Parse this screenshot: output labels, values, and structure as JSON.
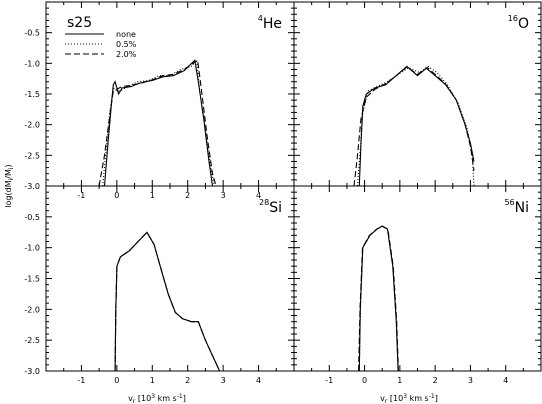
{
  "figure": {
    "model_label": "s25",
    "ylabel": "log(dM",
    "ylabel_sub1": "i",
    "ylabel_mid": "/M",
    "ylabel_sub2": "i",
    "ylabel_end": ")",
    "xlabel_main": "v",
    "xlabel_sub": "r",
    "xlabel_rest": " [10",
    "xlabel_exp": "3",
    "xlabel_unit": " km s",
    "xlabel_exp2": "-1",
    "xlabel_close": "]"
  },
  "legend": {
    "position": "top-left of upper-left panel",
    "items": [
      {
        "label": "none",
        "dash": "solid"
      },
      {
        "label": "0.5%",
        "dash": "dotted"
      },
      {
        "label": "2.0%",
        "dash": "dashed"
      }
    ]
  },
  "chart_data": [
    {
      "type": "line",
      "panel": "4He",
      "title_sup": "4",
      "title_main": "He",
      "xlim": [
        -2,
        5
      ],
      "ylim": [
        -3.0,
        0.0
      ],
      "xticks": [
        "-1",
        "0",
        "1",
        "2",
        "3",
        "4"
      ],
      "yticks": [
        "-0.5",
        "-1.0",
        "-1.5",
        "-2.0",
        "-2.5",
        "-3.0"
      ],
      "series": [
        {
          "name": "none",
          "dash": "solid",
          "points": [
            [
              -0.35,
              -3.0
            ],
            [
              -0.25,
              -2.3
            ],
            [
              -0.15,
              -1.65
            ],
            [
              -0.1,
              -1.35
            ],
            [
              -0.05,
              -1.3
            ],
            [
              0.05,
              -1.5
            ],
            [
              0.15,
              -1.4
            ],
            [
              0.4,
              -1.38
            ],
            [
              0.6,
              -1.33
            ],
            [
              0.8,
              -1.3
            ],
            [
              1.0,
              -1.28
            ],
            [
              1.3,
              -1.22
            ],
            [
              1.6,
              -1.2
            ],
            [
              1.9,
              -1.12
            ],
            [
              2.2,
              -0.95
            ],
            [
              2.3,
              -1.3
            ],
            [
              2.45,
              -1.9
            ],
            [
              2.6,
              -2.6
            ],
            [
              2.7,
              -3.0
            ]
          ]
        },
        {
          "name": "0.5%",
          "dash": "dotted",
          "points": [
            [
              -0.4,
              -3.0
            ],
            [
              -0.3,
              -2.4
            ],
            [
              -0.2,
              -1.8
            ],
            [
              -0.1,
              -1.4
            ],
            [
              0.0,
              -1.45
            ],
            [
              0.1,
              -1.45
            ],
            [
              0.3,
              -1.38
            ],
            [
              0.6,
              -1.3
            ],
            [
              0.9,
              -1.28
            ],
            [
              1.2,
              -1.2
            ],
            [
              1.5,
              -1.2
            ],
            [
              1.8,
              -1.1
            ],
            [
              2.1,
              -1.05
            ],
            [
              2.25,
              -0.95
            ],
            [
              2.35,
              -1.5
            ],
            [
              2.5,
              -2.1
            ],
            [
              2.65,
              -2.7
            ],
            [
              2.75,
              -3.0
            ]
          ]
        },
        {
          "name": "2.0%",
          "dash": "dashed",
          "points": [
            [
              -0.5,
              -3.0
            ],
            [
              -0.35,
              -2.5
            ],
            [
              -0.2,
              -1.85
            ],
            [
              -0.1,
              -1.45
            ],
            [
              0.0,
              -1.42
            ],
            [
              0.15,
              -1.38
            ],
            [
              0.4,
              -1.36
            ],
            [
              0.7,
              -1.32
            ],
            [
              1.0,
              -1.27
            ],
            [
              1.3,
              -1.2
            ],
            [
              1.6,
              -1.18
            ],
            [
              1.9,
              -1.1
            ],
            [
              2.15,
              -1.0
            ],
            [
              2.28,
              -0.95
            ],
            [
              2.38,
              -1.4
            ],
            [
              2.55,
              -2.2
            ],
            [
              2.7,
              -2.8
            ],
            [
              2.8,
              -3.0
            ]
          ]
        }
      ]
    },
    {
      "type": "line",
      "panel": "16O",
      "title_sup": "16",
      "title_main": "O",
      "xlim": [
        -2,
        5
      ],
      "ylim": [
        -3.0,
        0.0
      ],
      "xticks": [],
      "yticks": [],
      "series": [
        {
          "name": "none",
          "dash": "solid",
          "points": [
            [
              -0.15,
              -3.0
            ],
            [
              -0.1,
              -2.3
            ],
            [
              -0.05,
              -1.7
            ],
            [
              0.05,
              -1.5
            ],
            [
              0.3,
              -1.4
            ],
            [
              0.6,
              -1.35
            ],
            [
              0.9,
              -1.2
            ],
            [
              1.2,
              -1.05
            ],
            [
              1.5,
              -1.2
            ],
            [
              1.75,
              -1.08
            ],
            [
              2.0,
              -1.2
            ],
            [
              2.3,
              -1.35
            ],
            [
              2.6,
              -1.6
            ],
            [
              2.85,
              -2.0
            ],
            [
              3.0,
              -2.3
            ],
            [
              3.1,
              -2.6
            ]
          ]
        },
        {
          "name": "0.5%",
          "dash": "dotted",
          "points": [
            [
              -0.2,
              -3.0
            ],
            [
              -0.12,
              -2.4
            ],
            [
              -0.05,
              -1.8
            ],
            [
              0.1,
              -1.45
            ],
            [
              0.35,
              -1.38
            ],
            [
              0.65,
              -1.3
            ],
            [
              0.95,
              -1.18
            ],
            [
              1.25,
              -1.07
            ],
            [
              1.55,
              -1.15
            ],
            [
              1.8,
              -1.05
            ],
            [
              2.05,
              -1.15
            ],
            [
              2.35,
              -1.35
            ],
            [
              2.65,
              -1.65
            ],
            [
              2.9,
              -2.05
            ],
            [
              3.05,
              -2.5
            ],
            [
              3.1,
              -3.0
            ]
          ]
        },
        {
          "name": "2.0%",
          "dash": "dashed",
          "points": [
            [
              -0.3,
              -3.0
            ],
            [
              -0.2,
              -2.5
            ],
            [
              -0.1,
              -1.9
            ],
            [
              0.05,
              -1.55
            ],
            [
              0.3,
              -1.42
            ],
            [
              0.6,
              -1.33
            ],
            [
              0.9,
              -1.2
            ],
            [
              1.2,
              -1.06
            ],
            [
              1.5,
              -1.18
            ],
            [
              1.78,
              -1.07
            ],
            [
              2.0,
              -1.18
            ],
            [
              2.3,
              -1.34
            ],
            [
              2.6,
              -1.6
            ],
            [
              2.85,
              -2.0
            ],
            [
              3.0,
              -2.35
            ],
            [
              3.1,
              -2.75
            ]
          ]
        }
      ]
    },
    {
      "type": "line",
      "panel": "28Si",
      "title_sup": "28",
      "title_main": "Si",
      "xlim": [
        -2,
        5
      ],
      "ylim": [
        -3.0,
        0.0
      ],
      "xticks": [
        "-1",
        "0",
        "1",
        "2",
        "3",
        "4"
      ],
      "yticks": [
        "-0.5",
        "-1.0",
        "-1.5",
        "-2.0",
        "-2.5",
        "-3.0"
      ],
      "series": [
        {
          "name": "none",
          "dash": "solid",
          "points": [
            [
              -0.05,
              -3.0
            ],
            [
              -0.03,
              -2.0
            ],
            [
              0.0,
              -1.3
            ],
            [
              0.1,
              -1.15
            ],
            [
              0.35,
              -1.05
            ],
            [
              0.6,
              -0.9
            ],
            [
              0.85,
              -0.75
            ],
            [
              1.05,
              -0.95
            ],
            [
              1.25,
              -1.35
            ],
            [
              1.45,
              -1.75
            ],
            [
              1.65,
              -2.05
            ],
            [
              1.85,
              -2.15
            ],
            [
              2.1,
              -2.2
            ],
            [
              2.3,
              -2.2
            ],
            [
              2.5,
              -2.5
            ],
            [
              2.7,
              -2.75
            ],
            [
              2.9,
              -3.0
            ]
          ]
        },
        {
          "name": "0.5%",
          "dash": "dotted",
          "points": [
            [
              -0.05,
              -3.0
            ],
            [
              -0.03,
              -2.0
            ],
            [
              0.0,
              -1.3
            ],
            [
              0.1,
              -1.15
            ],
            [
              0.35,
              -1.05
            ],
            [
              0.6,
              -0.9
            ],
            [
              0.85,
              -0.75
            ],
            [
              1.05,
              -0.95
            ],
            [
              1.25,
              -1.35
            ],
            [
              1.45,
              -1.75
            ],
            [
              1.65,
              -2.05
            ],
            [
              1.85,
              -2.15
            ],
            [
              2.1,
              -2.2
            ],
            [
              2.3,
              -2.2
            ],
            [
              2.5,
              -2.5
            ],
            [
              2.7,
              -2.75
            ],
            [
              2.9,
              -3.0
            ]
          ]
        },
        {
          "name": "2.0%",
          "dash": "dashed",
          "points": [
            [
              -0.05,
              -3.0
            ],
            [
              -0.03,
              -2.0
            ],
            [
              0.0,
              -1.3
            ],
            [
              0.1,
              -1.15
            ],
            [
              0.35,
              -1.05
            ],
            [
              0.6,
              -0.9
            ],
            [
              0.85,
              -0.75
            ],
            [
              1.05,
              -0.95
            ],
            [
              1.25,
              -1.35
            ],
            [
              1.45,
              -1.75
            ],
            [
              1.65,
              -2.05
            ],
            [
              1.85,
              -2.15
            ],
            [
              2.1,
              -2.2
            ],
            [
              2.3,
              -2.2
            ],
            [
              2.5,
              -2.5
            ],
            [
              2.7,
              -2.75
            ],
            [
              2.9,
              -3.0
            ]
          ]
        }
      ]
    },
    {
      "type": "line",
      "panel": "56Ni",
      "title_sup": "56",
      "title_main": "Ni",
      "xlim": [
        -2,
        5
      ],
      "ylim": [
        -3.0,
        0.0
      ],
      "xticks": [
        "-1",
        "0",
        "1",
        "2",
        "3",
        "4"
      ],
      "yticks": [],
      "series": [
        {
          "name": "none",
          "dash": "solid",
          "points": [
            [
              -0.15,
              -3.0
            ],
            [
              -0.12,
              -2.0
            ],
            [
              -0.05,
              -1.0
            ],
            [
              0.15,
              -0.8
            ],
            [
              0.35,
              -0.7
            ],
            [
              0.5,
              -0.65
            ],
            [
              0.65,
              -0.7
            ],
            [
              0.8,
              -1.3
            ],
            [
              0.9,
              -2.2
            ],
            [
              0.95,
              -3.0
            ]
          ]
        },
        {
          "name": "0.5%",
          "dash": "dotted",
          "points": [
            [
              -0.15,
              -3.0
            ],
            [
              -0.12,
              -2.0
            ],
            [
              -0.05,
              -1.0
            ],
            [
              0.15,
              -0.8
            ],
            [
              0.35,
              -0.7
            ],
            [
              0.5,
              -0.65
            ],
            [
              0.65,
              -0.7
            ],
            [
              0.8,
              -1.3
            ],
            [
              0.9,
              -2.2
            ],
            [
              0.95,
              -3.0
            ]
          ]
        },
        {
          "name": "2.0%",
          "dash": "dashed",
          "points": [
            [
              -0.17,
              -3.0
            ],
            [
              -0.13,
              -2.0
            ],
            [
              -0.06,
              -1.0
            ],
            [
              0.14,
              -0.8
            ],
            [
              0.34,
              -0.7
            ],
            [
              0.5,
              -0.65
            ],
            [
              0.66,
              -0.7
            ],
            [
              0.81,
              -1.3
            ],
            [
              0.91,
              -2.2
            ],
            [
              0.96,
              -3.0
            ]
          ]
        }
      ]
    }
  ]
}
